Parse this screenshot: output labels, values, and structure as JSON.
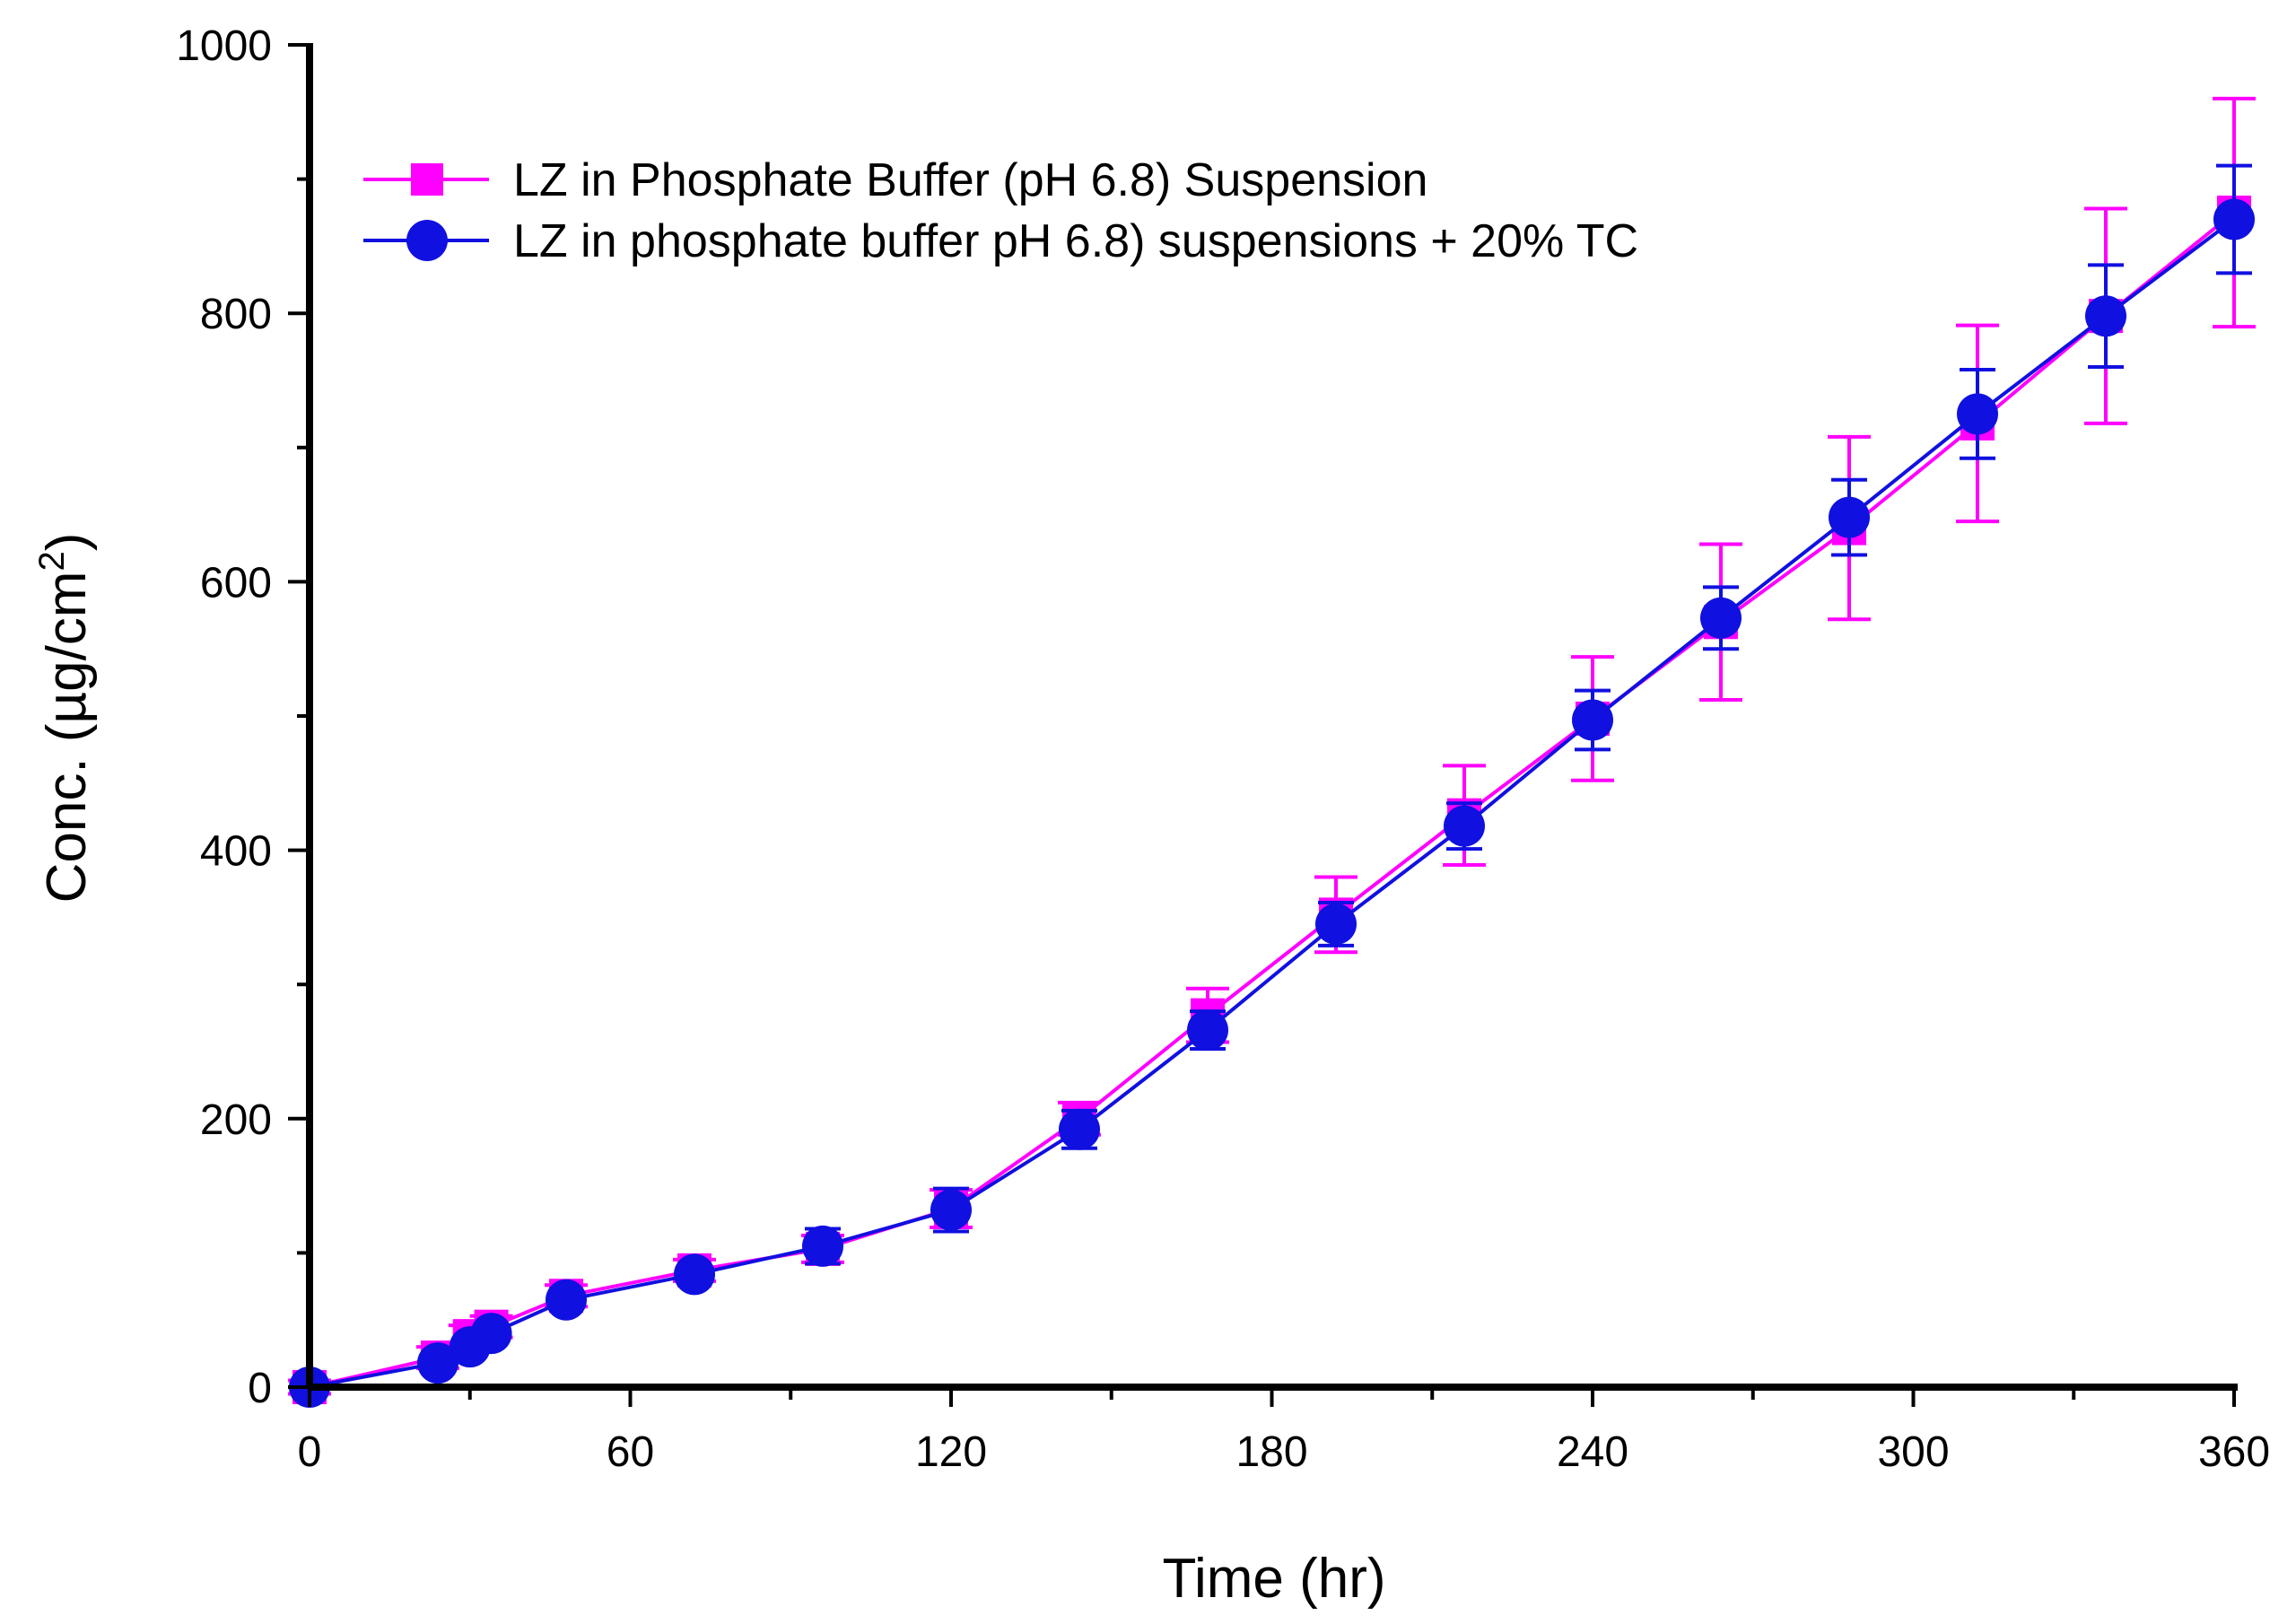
{
  "chart_data": {
    "type": "line",
    "title": "",
    "xlabel": "Time (hr)",
    "ylabel_prefix": "Conc. (µg/cm",
    "ylabel_sup": "2",
    "ylabel_suffix": ")",
    "xlim": [
      0,
      360
    ],
    "ylim": [
      0,
      1000
    ],
    "xticks": [
      0,
      60,
      120,
      180,
      240,
      300,
      360
    ],
    "yticks": [
      0,
      200,
      400,
      600,
      800,
      1000
    ],
    "grid": false,
    "legend_position": "top-left",
    "series": [
      {
        "name": "LZ in Phosphate Buffer (pH 6.8) Suspension",
        "marker": "square",
        "color": "#ff00ff",
        "x": [
          0,
          24,
          30,
          34,
          48,
          72,
          96,
          120,
          144,
          168,
          192,
          216,
          240,
          264,
          288,
          312,
          336,
          360
        ],
        "y": [
          0,
          22,
          38,
          45,
          68,
          87,
          103,
          133,
          200,
          277,
          352,
          426,
          498,
          570,
          640,
          718,
          798,
          875
        ],
        "err": [
          5,
          8,
          8,
          8,
          8,
          8,
          10,
          14,
          12,
          20,
          28,
          37,
          46,
          58,
          68,
          73,
          80,
          85
        ]
      },
      {
        "name": "LZ in phosphate buffer pH 6.8) suspensions + 20% TC",
        "marker": "circle",
        "color": "#1010e0",
        "x": [
          0,
          24,
          30,
          34,
          48,
          72,
          96,
          120,
          144,
          168,
          192,
          216,
          240,
          264,
          288,
          312,
          336,
          360
        ],
        "y": [
          0,
          18,
          30,
          40,
          65,
          84,
          105,
          132,
          192,
          266,
          345,
          418,
          497,
          573,
          648,
          725,
          798,
          870
        ],
        "err": [
          3,
          4,
          4,
          4,
          4,
          5,
          13,
          16,
          14,
          14,
          16,
          17,
          22,
          23,
          28,
          33,
          38,
          40
        ]
      }
    ]
  }
}
